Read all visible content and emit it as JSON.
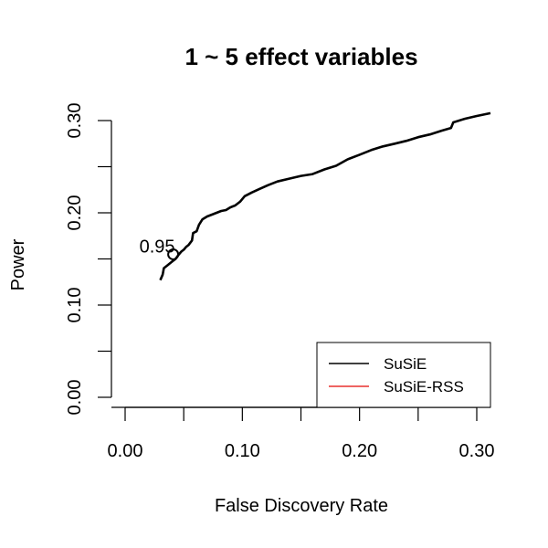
{
  "chart_data": {
    "type": "line",
    "title": "1 ~ 5 effect variables",
    "xlabel": "False Discovery Rate",
    "ylabel": "Power",
    "xlim": [
      0.0,
      0.31
    ],
    "ylim": [
      0.0,
      0.31
    ],
    "x_ticks": [
      0.0,
      0.05,
      0.1,
      0.15,
      0.2,
      0.25,
      0.3
    ],
    "x_tick_labels": [
      "0.00",
      "0.10",
      "0.20",
      "0.30"
    ],
    "x_tick_label_values": [
      0.0,
      0.1,
      0.2,
      0.3
    ],
    "y_ticks": [
      0.0,
      0.05,
      0.1,
      0.15,
      0.2,
      0.25,
      0.3
    ],
    "y_tick_labels": [
      "0.00",
      "0.10",
      "0.20",
      "0.30"
    ],
    "y_tick_label_values": [
      0.0,
      0.1,
      0.2,
      0.3
    ],
    "grid": false,
    "legend_position": "bottom-right",
    "series": [
      {
        "name": "SuSiE",
        "color": "#000000",
        "x": [
          0.03,
          0.032,
          0.033,
          0.036,
          0.04,
          0.043,
          0.046,
          0.048,
          0.05,
          0.052,
          0.054,
          0.057,
          0.058,
          0.061,
          0.063,
          0.066,
          0.07,
          0.074,
          0.078,
          0.082,
          0.086,
          0.09,
          0.094,
          0.098,
          0.102,
          0.108,
          0.115,
          0.122,
          0.13,
          0.14,
          0.15,
          0.16,
          0.17,
          0.18,
          0.19,
          0.2,
          0.21,
          0.22,
          0.23,
          0.24,
          0.25,
          0.26,
          0.27,
          0.278,
          0.28,
          0.29,
          0.3,
          0.312
        ],
        "y": [
          0.127,
          0.133,
          0.14,
          0.143,
          0.147,
          0.15,
          0.155,
          0.158,
          0.16,
          0.163,
          0.165,
          0.17,
          0.178,
          0.18,
          0.187,
          0.193,
          0.196,
          0.198,
          0.2,
          0.202,
          0.203,
          0.206,
          0.208,
          0.212,
          0.218,
          0.222,
          0.226,
          0.23,
          0.234,
          0.237,
          0.24,
          0.242,
          0.247,
          0.251,
          0.258,
          0.263,
          0.268,
          0.272,
          0.275,
          0.278,
          0.282,
          0.285,
          0.289,
          0.292,
          0.298,
          0.302,
          0.305,
          0.308
        ]
      },
      {
        "name": "SuSiE-RSS",
        "color": "#e8302e",
        "x": [],
        "y": []
      }
    ],
    "annotations": [
      {
        "text": "0.95",
        "x": 0.041,
        "y": 0.155,
        "marker": "circle"
      }
    ]
  }
}
